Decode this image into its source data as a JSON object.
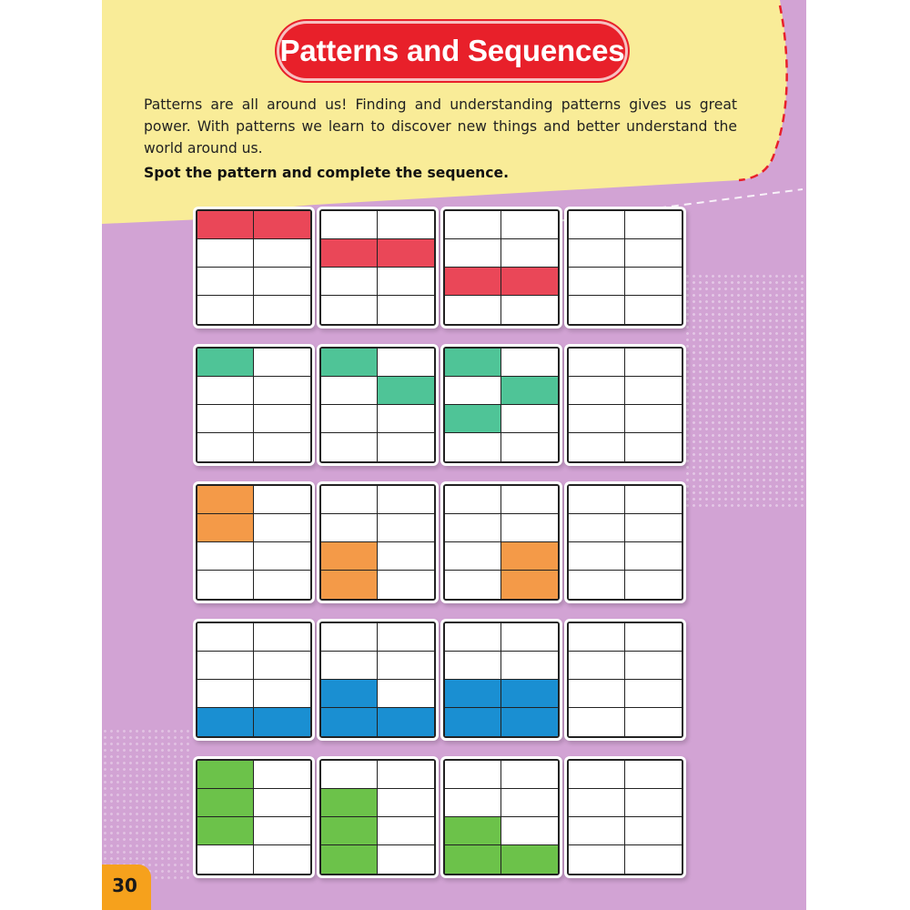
{
  "title": "Patterns and Sequences",
  "intro": "Patterns are all around us! Finding and understanding patterns gives us great power. With patterns we learn to discover new things and better understand the world around us.",
  "instruction": "Spot the pattern and complete the sequence.",
  "page_number": "30",
  "colors": {
    "background": "#d2a3d4",
    "panel": "#f9ec98",
    "title_banner": "#e8202a",
    "red": "#ea4758",
    "teal": "#4fc497",
    "orange": "#f49a48",
    "blue": "#1a8fd2",
    "green": "#6cc24a",
    "page_badge": "#f6a11c"
  },
  "puzzles": [
    {
      "color": "red",
      "frames": [
        [
          0,
          1
        ],
        [
          2,
          3
        ],
        [
          4,
          5
        ],
        []
      ]
    },
    {
      "color": "teal",
      "frames": [
        [
          0
        ],
        [
          0,
          3
        ],
        [
          0,
          3,
          4
        ],
        []
      ]
    },
    {
      "color": "orange",
      "frames": [
        [
          0,
          2
        ],
        [
          4,
          6
        ],
        [
          5,
          7
        ],
        []
      ]
    },
    {
      "color": "blue",
      "frames": [
        [
          6,
          7
        ],
        [
          4,
          6,
          7
        ],
        [
          4,
          5,
          6,
          7
        ],
        []
      ]
    },
    {
      "color": "green",
      "frames": [
        [
          0,
          2,
          4
        ],
        [
          2,
          4,
          6
        ],
        [
          4,
          6,
          7
        ],
        []
      ]
    }
  ]
}
